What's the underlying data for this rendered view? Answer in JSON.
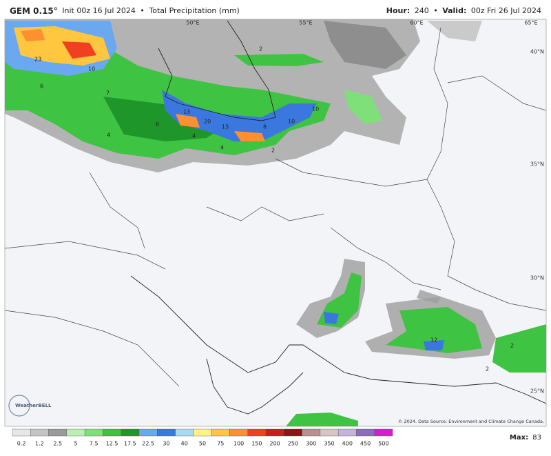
{
  "header": {
    "model": "GEM 0.15°",
    "init": "Init 00z 16 Jul 2024",
    "separator": "•",
    "field": "Total Precipitation (mm)",
    "hour_label": "Hour:",
    "hour": "240",
    "valid_label": "Valid:",
    "valid": "00z Fri 26 Jul 2024"
  },
  "map": {
    "longitude_labels": [
      "50°E",
      "55°E",
      "60°E",
      "65°E"
    ],
    "latitude_labels": [
      "40°N",
      "35°N",
      "30°N",
      "25°N"
    ],
    "contour_labels": [
      23,
      10,
      13,
      20,
      15,
      6,
      4,
      4,
      4,
      8,
      10,
      10,
      2,
      7,
      6,
      12,
      2,
      2,
      2
    ],
    "credit": "© 2024. Data Source: Environment and Climate Change Canada.",
    "logo": "WeatherBELL"
  },
  "legend": {
    "values": [
      0.2,
      1.2,
      2.5,
      5,
      7.5,
      12.5,
      17.5,
      22.5,
      30,
      40,
      50,
      75,
      100,
      150,
      200,
      250,
      300,
      350,
      400,
      450,
      500
    ],
    "colors": [
      "#e6e6e6",
      "#c4c4c4",
      "#9a9a9a",
      "#b9f0b0",
      "#7fe07a",
      "#3fc342",
      "#1f962a",
      "#6aa8f0",
      "#3a78e0",
      "#a8d8f2",
      "#fff08a",
      "#ffc640",
      "#ff9030",
      "#f04020",
      "#c81e1e",
      "#8c1414",
      "#b89090",
      "#d8c4c4",
      "#c4b4dc",
      "#8c6cc0",
      "#d020d0"
    ]
  },
  "max": {
    "label": "Max:",
    "value": 83
  }
}
